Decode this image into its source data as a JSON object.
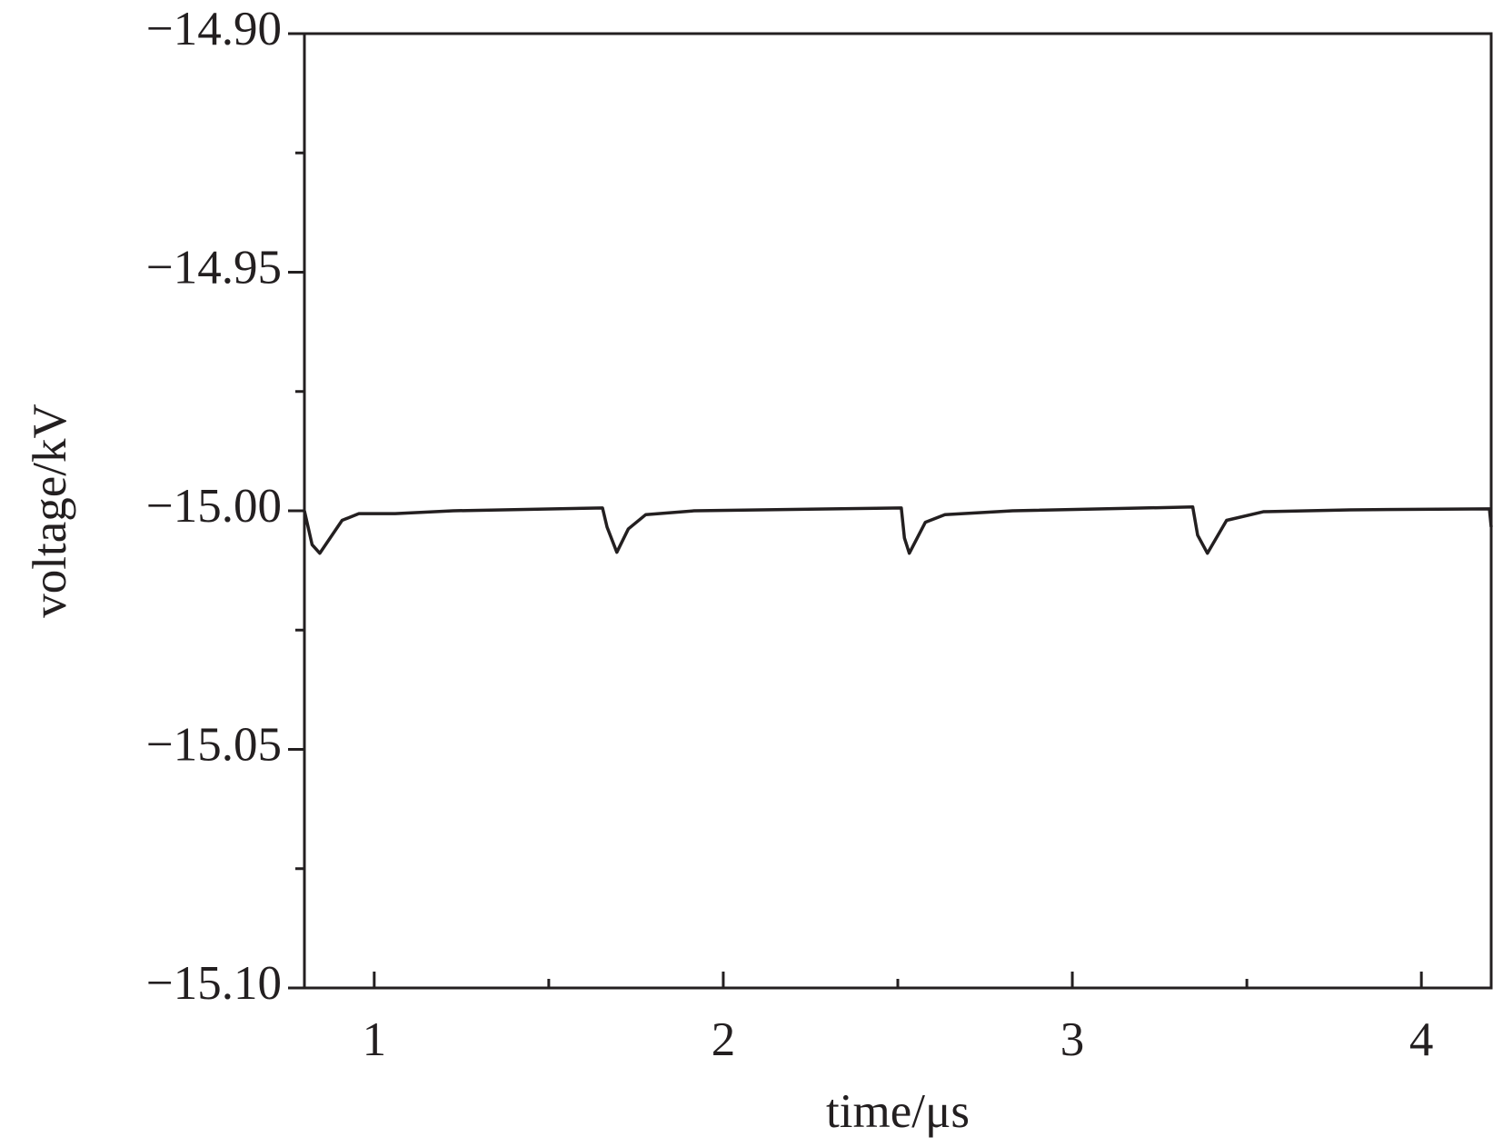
{
  "chart_data": {
    "type": "line",
    "xlabel": "time/μs",
    "ylabel": "voltage/kV",
    "x": [
      0.8,
      0.822,
      0.844,
      0.908,
      0.956,
      1.06,
      1.226,
      1.654,
      1.667,
      1.695,
      1.728,
      1.778,
      1.917,
      2.51,
      2.519,
      2.533,
      2.579,
      2.635,
      2.829,
      3.345,
      3.359,
      3.387,
      3.442,
      3.547,
      3.795,
      4.195,
      4.2
    ],
    "series": [
      {
        "color": "#231f20",
        "values": [
          -15.0,
          -15.0071,
          -15.0089,
          -15.002,
          -15.0006,
          -15.0006,
          -15.0,
          -14.9994,
          -15.0034,
          -15.0087,
          -15.0038,
          -15.0008,
          -15.0,
          -14.9994,
          -15.0057,
          -15.0089,
          -15.0024,
          -15.0008,
          -15.0,
          -14.9992,
          -15.0051,
          -15.0089,
          -15.002,
          -15.0002,
          -14.9998,
          -14.9996,
          -15.0034
        ]
      }
    ],
    "xlim": [
      0.8,
      4.2
    ],
    "xticks": [
      1,
      2,
      3,
      4
    ],
    "xminorticks": [
      1.5,
      2.5,
      3.5
    ],
    "ylim": [
      -15.1,
      -14.9
    ],
    "yticks": [
      {
        "value": -15.1,
        "label": "−15.10"
      },
      {
        "value": -15.05,
        "label": "−15.05"
      },
      {
        "value": -15.0,
        "label": "−15.00"
      },
      {
        "value": -14.95,
        "label": "−14.95"
      },
      {
        "value": -14.9,
        "label": "−14.90"
      }
    ],
    "yminorticks": [
      -15.075,
      -15.025,
      -14.975,
      -14.925
    ],
    "grid": false
  }
}
